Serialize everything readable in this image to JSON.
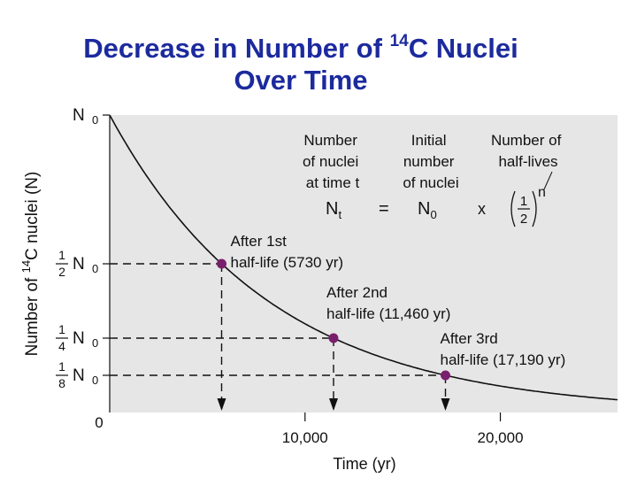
{
  "title": {
    "line1_pre": "Decrease in Number of ",
    "line1_sup": "14",
    "line1_post": "C Nuclei",
    "line2": "Over Time"
  },
  "chart_data": {
    "type": "line",
    "title": "Decrease in Number of 14C Nuclei Over Time",
    "xlabel": "Time (yr)",
    "ylabel": "Number of 14C nuclei (N)",
    "xlim": [
      0,
      26000
    ],
    "ylim": [
      0,
      1
    ],
    "grid": false,
    "x_ticks": [
      {
        "value": 0,
        "label": "0"
      },
      {
        "value": 10000,
        "label": "10,000"
      },
      {
        "value": 20000,
        "label": "20,000"
      }
    ],
    "y_ticks": [
      {
        "value": 1,
        "frac": "",
        "label": "N",
        "sub": "0"
      },
      {
        "value": 0.5,
        "frac": [
          "1",
          "2"
        ],
        "label": "N",
        "sub": "0"
      },
      {
        "value": 0.25,
        "frac": [
          "1",
          "4"
        ],
        "label": "N",
        "sub": "0"
      },
      {
        "value": 0.125,
        "frac": [
          "1",
          "8"
        ],
        "label": "N",
        "sub": "0"
      }
    ],
    "series": [
      {
        "formula": "N = N0 * (1/2)^(t/5730)",
        "half_life": 5730,
        "x": [
          0,
          2865,
          5730,
          8595,
          11460,
          14325,
          17190,
          20055,
          22920,
          26000
        ],
        "y": [
          1.0,
          0.707,
          0.5,
          0.354,
          0.25,
          0.177,
          0.125,
          0.088,
          0.0625,
          0.043
        ]
      }
    ],
    "points": [
      {
        "x": 5730,
        "y": 0.5,
        "label_line1": "After 1st",
        "label_line2": "half-life (5730 yr)"
      },
      {
        "x": 11460,
        "y": 0.25,
        "label_line1": "After 2nd",
        "label_line2": "half-life (11,460 yr)"
      },
      {
        "x": 17190,
        "y": 0.125,
        "label_line1": "After 3rd",
        "label_line2": "half-life (17,190 yr)"
      }
    ],
    "equation": {
      "captions": [
        [
          "Number",
          "of nuclei",
          "at time t"
        ],
        [
          "Initial",
          "number",
          "of nuclei"
        ],
        [
          "Number of",
          "half-lives"
        ]
      ],
      "lhs": "N",
      "lhs_sub": "t",
      "equals": "=",
      "rhs": "N",
      "rhs_sub": "0",
      "times": "x",
      "frac_num": "1",
      "frac_den": "2",
      "exponent": "n"
    },
    "colors": {
      "background": "#e6e6e6",
      "curve": "#111111",
      "point": "#7a1f6e",
      "title": "#1c2a9e"
    }
  }
}
